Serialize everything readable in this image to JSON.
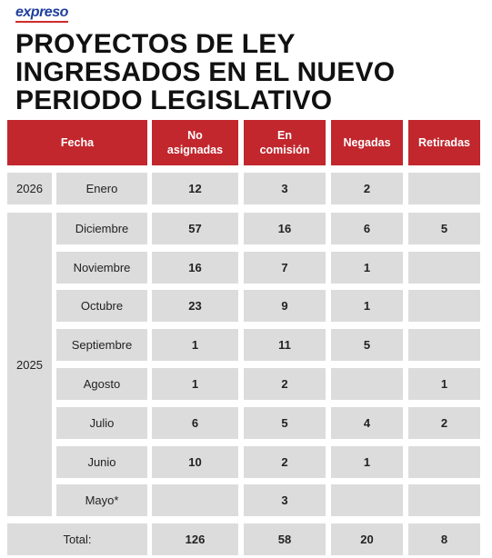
{
  "brand": "expreso",
  "title": "PROYECTOS DE LEY INGRESADOS EN EL NUEVO PERIODO LEGISLATIVO",
  "table": {
    "header": [
      "Fecha",
      "No asignadas",
      "En comisión",
      "Negadas",
      "Retiradas"
    ],
    "groups": [
      {
        "year": "2026",
        "rows": [
          {
            "month": "Enero",
            "cells": [
              12,
              3,
              2,
              null
            ]
          }
        ]
      },
      {
        "year": "2025",
        "rows": [
          {
            "month": "Diciembre",
            "cells": [
              57,
              16,
              6,
              5
            ]
          },
          {
            "month": "Noviembre",
            "cells": [
              16,
              7,
              1,
              null
            ]
          },
          {
            "month": "Octubre",
            "cells": [
              23,
              9,
              1,
              null
            ]
          },
          {
            "month": "Septiembre",
            "cells": [
              1,
              11,
              5,
              null
            ]
          },
          {
            "month": "Agosto",
            "cells": [
              1,
              2,
              null,
              1
            ]
          },
          {
            "month": "Julio",
            "cells": [
              6,
              5,
              4,
              2
            ]
          },
          {
            "month": "Junio",
            "cells": [
              10,
              2,
              1,
              null
            ]
          },
          {
            "month": "Mayo*",
            "cells": [
              null,
              3,
              null,
              null
            ]
          }
        ]
      }
    ],
    "total": {
      "label": "Total:",
      "cells": [
        126,
        58,
        20,
        8
      ]
    }
  }
}
